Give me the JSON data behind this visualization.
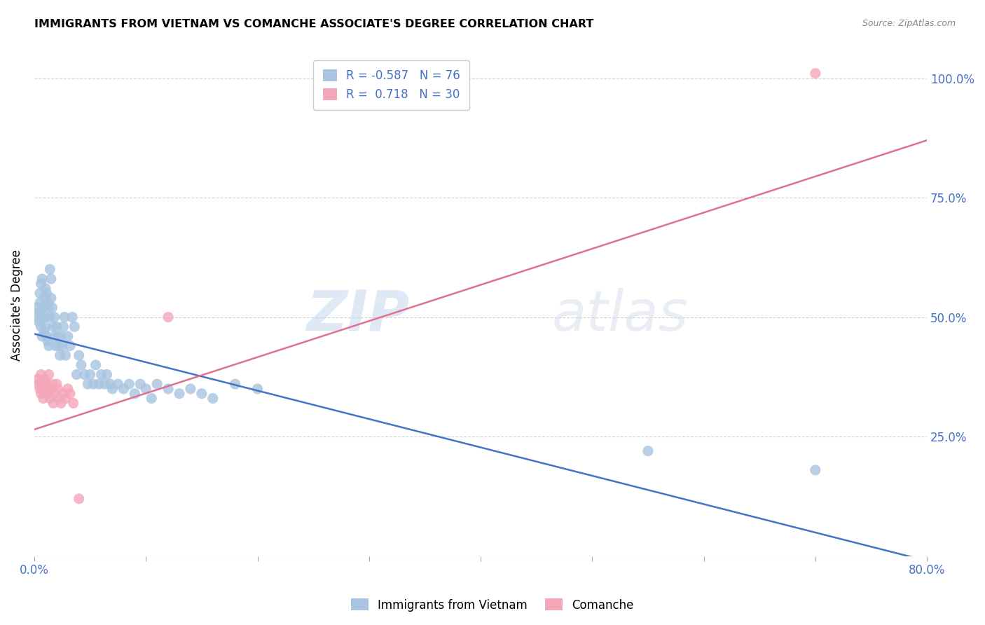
{
  "title": "IMMIGRANTS FROM VIETNAM VS COMANCHE ASSOCIATE'S DEGREE CORRELATION CHART",
  "source": "Source: ZipAtlas.com",
  "xlabel_ticks": [
    "0.0%",
    "",
    "",
    "",
    "",
    "",
    "",
    "",
    "80.0%"
  ],
  "ylabel_ticks": [
    "25.0%",
    "50.0%",
    "75.0%",
    "100.0%"
  ],
  "ylabel_label": "Associate's Degree",
  "xmin": 0.0,
  "xmax": 0.8,
  "ymin": 0.0,
  "ymax": 1.05,
  "legend_label1": "Immigrants from Vietnam",
  "legend_label2": "Comanche",
  "r1": "-0.587",
  "n1": "76",
  "r2": "0.718",
  "n2": "30",
  "blue_color": "#a8c4e0",
  "pink_color": "#f4a7b9",
  "blue_line_color": "#4472c4",
  "pink_line_color": "#e07090",
  "axis_label_color": "#4472c4",
  "watermark_zip": "ZIP",
  "watermark_atlas": "atlas",
  "blue_scatter_x": [
    0.002,
    0.003,
    0.004,
    0.005,
    0.005,
    0.005,
    0.006,
    0.006,
    0.007,
    0.007,
    0.008,
    0.008,
    0.009,
    0.009,
    0.01,
    0.01,
    0.01,
    0.011,
    0.011,
    0.012,
    0.012,
    0.013,
    0.013,
    0.014,
    0.014,
    0.015,
    0.015,
    0.016,
    0.017,
    0.018,
    0.018,
    0.019,
    0.02,
    0.021,
    0.022,
    0.023,
    0.024,
    0.025,
    0.026,
    0.027,
    0.028,
    0.03,
    0.032,
    0.034,
    0.036,
    0.038,
    0.04,
    0.042,
    0.045,
    0.048,
    0.05,
    0.053,
    0.055,
    0.058,
    0.06,
    0.063,
    0.065,
    0.068,
    0.07,
    0.075,
    0.08,
    0.085,
    0.09,
    0.095,
    0.1,
    0.105,
    0.11,
    0.12,
    0.13,
    0.14,
    0.15,
    0.16,
    0.18,
    0.2,
    0.55,
    0.7
  ],
  "blue_scatter_y": [
    0.5,
    0.52,
    0.49,
    0.55,
    0.53,
    0.51,
    0.57,
    0.48,
    0.58,
    0.46,
    0.52,
    0.5,
    0.54,
    0.47,
    0.56,
    0.5,
    0.48,
    0.55,
    0.46,
    0.53,
    0.45,
    0.52,
    0.44,
    0.5,
    0.6,
    0.58,
    0.54,
    0.52,
    0.48,
    0.5,
    0.46,
    0.44,
    0.48,
    0.46,
    0.44,
    0.42,
    0.46,
    0.44,
    0.48,
    0.5,
    0.42,
    0.46,
    0.44,
    0.5,
    0.48,
    0.38,
    0.42,
    0.4,
    0.38,
    0.36,
    0.38,
    0.36,
    0.4,
    0.36,
    0.38,
    0.36,
    0.38,
    0.36,
    0.35,
    0.36,
    0.35,
    0.36,
    0.34,
    0.36,
    0.35,
    0.33,
    0.36,
    0.35,
    0.34,
    0.35,
    0.34,
    0.33,
    0.36,
    0.35,
    0.22,
    0.18
  ],
  "pink_scatter_x": [
    0.003,
    0.004,
    0.005,
    0.006,
    0.006,
    0.007,
    0.008,
    0.008,
    0.009,
    0.01,
    0.011,
    0.012,
    0.013,
    0.014,
    0.015,
    0.016,
    0.017,
    0.018,
    0.02,
    0.021,
    0.022,
    0.024,
    0.026,
    0.028,
    0.03,
    0.032,
    0.035,
    0.04,
    0.12,
    0.7
  ],
  "pink_scatter_y": [
    0.37,
    0.36,
    0.35,
    0.38,
    0.34,
    0.36,
    0.35,
    0.33,
    0.37,
    0.35,
    0.36,
    0.34,
    0.38,
    0.33,
    0.35,
    0.36,
    0.32,
    0.34,
    0.36,
    0.35,
    0.33,
    0.32,
    0.34,
    0.33,
    0.35,
    0.34,
    0.32,
    0.12,
    0.5,
    1.01
  ],
  "blue_line_x": [
    0.0,
    0.8
  ],
  "blue_line_y": [
    0.465,
    -0.01
  ],
  "pink_line_x": [
    0.0,
    0.8
  ],
  "pink_line_y": [
    0.265,
    0.87
  ],
  "grid_color": "#cccccc",
  "x_tick_positions": [
    0.0,
    0.1,
    0.2,
    0.3,
    0.4,
    0.5,
    0.6,
    0.7,
    0.8
  ],
  "x_tick_labels": [
    "0.0%",
    "",
    "",
    "",
    "",
    "",
    "",
    "",
    "80.0%"
  ]
}
